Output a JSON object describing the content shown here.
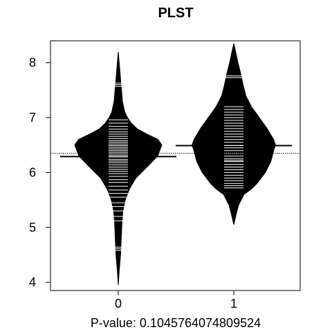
{
  "chart_data": {
    "type": "beanplot",
    "title": "PLST",
    "xlabel": "P-value: 0.1045764074809524",
    "ylabel": "",
    "categories": [
      "0",
      "1"
    ],
    "ylim": [
      3.85,
      8.4
    ],
    "yticks": [
      4,
      5,
      6,
      7,
      8
    ],
    "grid": false,
    "overall_mean": 6.35,
    "series": [
      {
        "category": "0",
        "mean": 6.29,
        "range": [
          3.95,
          8.2
        ],
        "density": [
          [
            3.95,
            0.0
          ],
          [
            4.2,
            0.02
          ],
          [
            4.5,
            0.05
          ],
          [
            4.7,
            0.06
          ],
          [
            4.9,
            0.07
          ],
          [
            5.1,
            0.08
          ],
          [
            5.3,
            0.1
          ],
          [
            5.5,
            0.15
          ],
          [
            5.7,
            0.24
          ],
          [
            5.9,
            0.38
          ],
          [
            6.1,
            0.62
          ],
          [
            6.3,
            0.85
          ],
          [
            6.5,
            0.94
          ],
          [
            6.6,
            0.86
          ],
          [
            6.7,
            0.62
          ],
          [
            6.8,
            0.4
          ],
          [
            6.9,
            0.28
          ],
          [
            7.0,
            0.2
          ],
          [
            7.1,
            0.14
          ],
          [
            7.3,
            0.09
          ],
          [
            7.5,
            0.07
          ],
          [
            7.7,
            0.05
          ],
          [
            7.9,
            0.03
          ],
          [
            8.2,
            0.0
          ]
        ],
        "observations": [
          4.58,
          4.61,
          4.64,
          5.12,
          5.2,
          5.3,
          5.38,
          5.45,
          5.55,
          5.62,
          5.68,
          5.75,
          5.82,
          5.87,
          5.93,
          5.98,
          6.02,
          6.06,
          6.1,
          6.14,
          6.18,
          6.21,
          6.24,
          6.28,
          6.31,
          6.34,
          6.37,
          6.4,
          6.43,
          6.46,
          6.49,
          6.52,
          6.55,
          6.58,
          6.62,
          6.66,
          6.7,
          6.74,
          6.79,
          6.84,
          6.9,
          6.96,
          7.57,
          7.6,
          7.63
        ]
      },
      {
        "category": "1",
        "mean": 6.49,
        "range": [
          5.05,
          8.35
        ],
        "density": [
          [
            5.05,
            0.0
          ],
          [
            5.2,
            0.04
          ],
          [
            5.4,
            0.1
          ],
          [
            5.6,
            0.22
          ],
          [
            5.7,
            0.38
          ],
          [
            5.8,
            0.5
          ],
          [
            6.0,
            0.68
          ],
          [
            6.2,
            0.8
          ],
          [
            6.4,
            0.86
          ],
          [
            6.5,
            0.9
          ],
          [
            6.6,
            0.86
          ],
          [
            6.8,
            0.72
          ],
          [
            7.0,
            0.55
          ],
          [
            7.2,
            0.38
          ],
          [
            7.4,
            0.26
          ],
          [
            7.6,
            0.2
          ],
          [
            7.8,
            0.15
          ],
          [
            8.0,
            0.09
          ],
          [
            8.2,
            0.04
          ],
          [
            8.35,
            0.0
          ]
        ],
        "observations": [
          5.72,
          5.76,
          5.8,
          5.85,
          5.9,
          5.95,
          6.0,
          6.05,
          6.1,
          6.15,
          6.2,
          6.22,
          6.25,
          6.3,
          6.35,
          6.4,
          6.45,
          6.5,
          6.55,
          6.6,
          6.65,
          6.7,
          6.75,
          6.8,
          6.85,
          6.9,
          6.95,
          7.0,
          7.05,
          7.1,
          7.15,
          7.2,
          7.73,
          7.76
        ]
      }
    ]
  }
}
